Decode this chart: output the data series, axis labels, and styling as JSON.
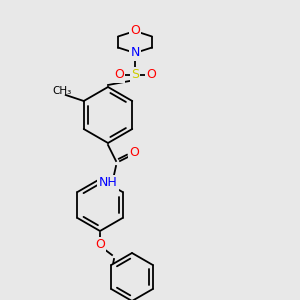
{
  "bg_color": "#e8e8e8",
  "bond_color": "#000000",
  "atom_colors": {
    "O": "#ff0000",
    "N": "#0000ff",
    "S": "#cccc00",
    "C": "#000000",
    "H": "#5f9ea0"
  },
  "font_size_atom": 9,
  "font_size_small": 8,
  "lw": 1.3
}
